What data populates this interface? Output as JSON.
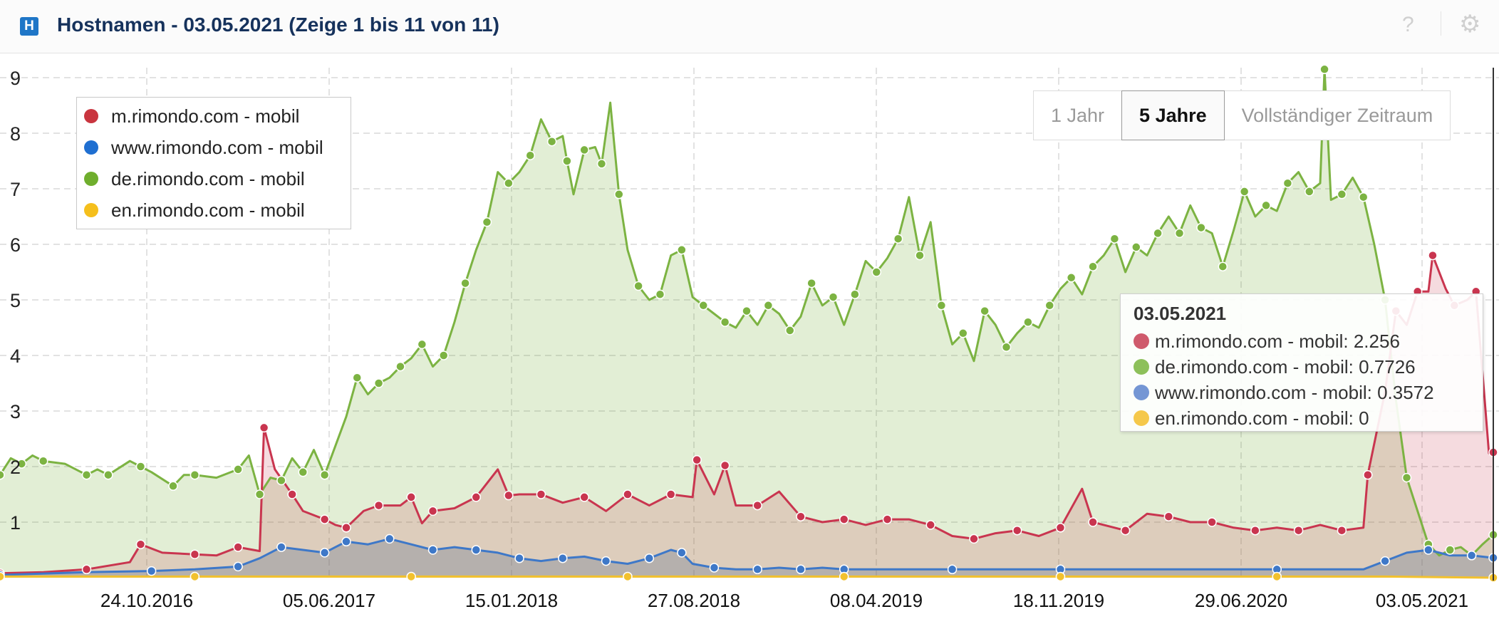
{
  "header": {
    "logo_letter": "H",
    "title": "Hostnamen - 03.05.2021 (Zeige 1 bis 11 von 11)",
    "help_icon": "?",
    "settings_icon": "gear-icon"
  },
  "range_selector": {
    "buttons": [
      "1 Jahr",
      "5 Jahre",
      "Vollständiger Zeitraum"
    ],
    "active": "5 Jahre"
  },
  "tooltip": {
    "date": "03.05.2021",
    "rows": [
      {
        "label": "m.rimondo.com - mobil: 2.256",
        "color": "#c9354f"
      },
      {
        "label": "de.rimondo.com - mobil: 0.7726",
        "color": "#7cb342"
      },
      {
        "label": "www.rimondo.com - mobil: 0.3572",
        "color": "#3e78c8"
      },
      {
        "label": "en.rimondo.com - mobil: 0",
        "color": "#f2c12e"
      }
    ]
  },
  "chart_data": {
    "type": "area",
    "x_tick_labels": [
      "24.10.2016",
      "05.06.2017",
      "15.01.2018",
      "27.08.2018",
      "08.04.2019",
      "18.11.2019",
      "29.06.2020",
      "03.05.2021"
    ],
    "ylim": [
      0,
      9
    ],
    "y_ticks": [
      1,
      2,
      3,
      4,
      5,
      6,
      7,
      8,
      9
    ],
    "grid": true,
    "legend_position": "top-left",
    "series": [
      {
        "name": "m.rimondo.com - mobil",
        "color": "#c9354f",
        "points": [
          [
            2016.1,
            0.08
          ],
          [
            2016.3,
            0.1
          ],
          [
            2016.5,
            0.15
          ],
          [
            2016.7,
            0.28
          ],
          [
            2016.75,
            0.6
          ],
          [
            2016.85,
            0.45
          ],
          [
            2017.0,
            0.42
          ],
          [
            2017.1,
            0.4
          ],
          [
            2017.2,
            0.55
          ],
          [
            2017.3,
            0.48
          ],
          [
            2017.32,
            2.7
          ],
          [
            2017.37,
            1.95
          ],
          [
            2017.45,
            1.5
          ],
          [
            2017.5,
            1.2
          ],
          [
            2017.6,
            1.05
          ],
          [
            2017.65,
            0.95
          ],
          [
            2017.7,
            0.9
          ],
          [
            2017.78,
            1.2
          ],
          [
            2017.85,
            1.3
          ],
          [
            2017.95,
            1.3
          ],
          [
            2018.0,
            1.45
          ],
          [
            2018.05,
            0.98
          ],
          [
            2018.1,
            1.2
          ],
          [
            2018.2,
            1.25
          ],
          [
            2018.3,
            1.45
          ],
          [
            2018.4,
            1.95
          ],
          [
            2018.45,
            1.48
          ],
          [
            2018.5,
            1.5
          ],
          [
            2018.6,
            1.5
          ],
          [
            2018.7,
            1.35
          ],
          [
            2018.8,
            1.45
          ],
          [
            2018.9,
            1.2
          ],
          [
            2019.0,
            1.5
          ],
          [
            2019.1,
            1.3
          ],
          [
            2019.2,
            1.5
          ],
          [
            2019.3,
            1.45
          ],
          [
            2019.32,
            2.12
          ],
          [
            2019.4,
            1.5
          ],
          [
            2019.45,
            2.02
          ],
          [
            2019.5,
            1.3
          ],
          [
            2019.6,
            1.3
          ],
          [
            2019.7,
            1.55
          ],
          [
            2019.8,
            1.1
          ],
          [
            2019.9,
            1.0
          ],
          [
            2020.0,
            1.05
          ],
          [
            2020.1,
            0.95
          ],
          [
            2020.2,
            1.05
          ],
          [
            2020.3,
            1.05
          ],
          [
            2020.4,
            0.95
          ],
          [
            2020.5,
            0.75
          ],
          [
            2020.6,
            0.7
          ],
          [
            2020.7,
            0.8
          ],
          [
            2020.8,
            0.85
          ],
          [
            2020.9,
            0.75
          ],
          [
            2021.0,
            0.9
          ],
          [
            2021.1,
            1.6
          ],
          [
            2021.15,
            1.0
          ],
          [
            2021.2,
            0.95
          ],
          [
            2021.3,
            0.85
          ],
          [
            2021.4,
            1.15
          ],
          [
            2021.5,
            1.1
          ],
          [
            2021.6,
            1.0
          ],
          [
            2021.7,
            1.0
          ],
          [
            2021.8,
            0.9
          ],
          [
            2021.9,
            0.85
          ],
          [
            2022.0,
            0.9
          ],
          [
            2022.1,
            0.85
          ],
          [
            2022.2,
            0.95
          ],
          [
            2022.3,
            0.85
          ],
          [
            2022.4,
            0.9
          ],
          [
            2022.42,
            1.85
          ],
          [
            2022.5,
            3.35
          ],
          [
            2022.55,
            4.8
          ],
          [
            2022.6,
            4.55
          ],
          [
            2022.65,
            5.15
          ],
          [
            2022.7,
            5.15
          ],
          [
            2022.72,
            5.8
          ],
          [
            2022.78,
            5.2
          ],
          [
            2022.82,
            4.9
          ],
          [
            2022.88,
            5.0
          ],
          [
            2022.92,
            5.15
          ],
          [
            2022.98,
            2.24
          ],
          [
            2023.0,
            2.256
          ]
        ]
      },
      {
        "name": "www.rimondo.com - mobil",
        "color": "#3e78c8",
        "points": [
          [
            2016.1,
            0.05
          ],
          [
            2016.5,
            0.1
          ],
          [
            2016.8,
            0.12
          ],
          [
            2017.0,
            0.15
          ],
          [
            2017.2,
            0.2
          ],
          [
            2017.3,
            0.35
          ],
          [
            2017.4,
            0.55
          ],
          [
            2017.5,
            0.5
          ],
          [
            2017.6,
            0.45
          ],
          [
            2017.65,
            0.55
          ],
          [
            2017.7,
            0.65
          ],
          [
            2017.8,
            0.6
          ],
          [
            2017.9,
            0.7
          ],
          [
            2018.0,
            0.6
          ],
          [
            2018.1,
            0.5
          ],
          [
            2018.2,
            0.55
          ],
          [
            2018.3,
            0.5
          ],
          [
            2018.4,
            0.45
          ],
          [
            2018.5,
            0.35
          ],
          [
            2018.6,
            0.3
          ],
          [
            2018.7,
            0.35
          ],
          [
            2018.8,
            0.38
          ],
          [
            2018.9,
            0.3
          ],
          [
            2019.0,
            0.25
          ],
          [
            2019.1,
            0.35
          ],
          [
            2019.2,
            0.5
          ],
          [
            2019.25,
            0.45
          ],
          [
            2019.3,
            0.25
          ],
          [
            2019.4,
            0.18
          ],
          [
            2019.5,
            0.15
          ],
          [
            2019.6,
            0.15
          ],
          [
            2019.7,
            0.18
          ],
          [
            2019.8,
            0.15
          ],
          [
            2019.9,
            0.18
          ],
          [
            2020.0,
            0.15
          ],
          [
            2020.2,
            0.15
          ],
          [
            2020.5,
            0.15
          ],
          [
            2020.8,
            0.15
          ],
          [
            2021.0,
            0.15
          ],
          [
            2021.5,
            0.15
          ],
          [
            2022.0,
            0.15
          ],
          [
            2022.4,
            0.15
          ],
          [
            2022.5,
            0.3
          ],
          [
            2022.6,
            0.45
          ],
          [
            2022.7,
            0.5
          ],
          [
            2022.8,
            0.4
          ],
          [
            2022.9,
            0.4
          ],
          [
            2023.0,
            0.3572
          ]
        ]
      },
      {
        "name": "de.rimondo.com - mobil",
        "color": "#7cb342",
        "points": [
          [
            2016.1,
            1.85
          ],
          [
            2016.15,
            2.15
          ],
          [
            2016.2,
            2.05
          ],
          [
            2016.25,
            2.2
          ],
          [
            2016.3,
            2.1
          ],
          [
            2016.4,
            2.05
          ],
          [
            2016.5,
            1.85
          ],
          [
            2016.55,
            1.95
          ],
          [
            2016.6,
            1.85
          ],
          [
            2016.7,
            2.1
          ],
          [
            2016.75,
            2.0
          ],
          [
            2016.8,
            1.9
          ],
          [
            2016.9,
            1.65
          ],
          [
            2016.95,
            1.85
          ],
          [
            2017.0,
            1.85
          ],
          [
            2017.1,
            1.8
          ],
          [
            2017.2,
            1.95
          ],
          [
            2017.25,
            2.2
          ],
          [
            2017.3,
            1.5
          ],
          [
            2017.35,
            1.8
          ],
          [
            2017.4,
            1.75
          ],
          [
            2017.45,
            2.15
          ],
          [
            2017.5,
            1.9
          ],
          [
            2017.55,
            2.3
          ],
          [
            2017.6,
            1.85
          ],
          [
            2017.7,
            2.9
          ],
          [
            2017.75,
            3.6
          ],
          [
            2017.8,
            3.3
          ],
          [
            2017.85,
            3.5
          ],
          [
            2017.9,
            3.6
          ],
          [
            2017.95,
            3.8
          ],
          [
            2018.0,
            3.95
          ],
          [
            2018.05,
            4.2
          ],
          [
            2018.1,
            3.8
          ],
          [
            2018.15,
            4.0
          ],
          [
            2018.2,
            4.6
          ],
          [
            2018.25,
            5.3
          ],
          [
            2018.3,
            5.9
          ],
          [
            2018.35,
            6.4
          ],
          [
            2018.4,
            7.3
          ],
          [
            2018.45,
            7.1
          ],
          [
            2018.5,
            7.3
          ],
          [
            2018.55,
            7.6
          ],
          [
            2018.6,
            8.25
          ],
          [
            2018.65,
            7.85
          ],
          [
            2018.7,
            7.95
          ],
          [
            2018.72,
            7.5
          ],
          [
            2018.75,
            6.9
          ],
          [
            2018.8,
            7.7
          ],
          [
            2018.85,
            7.75
          ],
          [
            2018.88,
            7.45
          ],
          [
            2018.92,
            8.55
          ],
          [
            2018.96,
            6.9
          ],
          [
            2019.0,
            5.9
          ],
          [
            2019.05,
            5.25
          ],
          [
            2019.1,
            5.0
          ],
          [
            2019.15,
            5.1
          ],
          [
            2019.2,
            5.8
          ],
          [
            2019.25,
            5.9
          ],
          [
            2019.3,
            5.05
          ],
          [
            2019.35,
            4.9
          ],
          [
            2019.4,
            4.75
          ],
          [
            2019.45,
            4.6
          ],
          [
            2019.5,
            4.5
          ],
          [
            2019.55,
            4.8
          ],
          [
            2019.6,
            4.55
          ],
          [
            2019.65,
            4.9
          ],
          [
            2019.7,
            4.75
          ],
          [
            2019.75,
            4.45
          ],
          [
            2019.8,
            4.7
          ],
          [
            2019.85,
            5.3
          ],
          [
            2019.9,
            4.9
          ],
          [
            2019.95,
            5.05
          ],
          [
            2020.0,
            4.55
          ],
          [
            2020.05,
            5.1
          ],
          [
            2020.1,
            5.7
          ],
          [
            2020.15,
            5.5
          ],
          [
            2020.2,
            5.75
          ],
          [
            2020.25,
            6.1
          ],
          [
            2020.3,
            6.85
          ],
          [
            2020.35,
            5.8
          ],
          [
            2020.4,
            6.4
          ],
          [
            2020.45,
            4.9
          ],
          [
            2020.5,
            4.2
          ],
          [
            2020.55,
            4.4
          ],
          [
            2020.6,
            3.9
          ],
          [
            2020.65,
            4.8
          ],
          [
            2020.7,
            4.55
          ],
          [
            2020.75,
            4.15
          ],
          [
            2020.8,
            4.4
          ],
          [
            2020.85,
            4.6
          ],
          [
            2020.9,
            4.5
          ],
          [
            2020.95,
            4.9
          ],
          [
            2021.0,
            5.2
          ],
          [
            2021.05,
            5.4
          ],
          [
            2021.1,
            5.1
          ],
          [
            2021.15,
            5.6
          ],
          [
            2021.2,
            5.8
          ],
          [
            2021.25,
            6.1
          ],
          [
            2021.3,
            5.5
          ],
          [
            2021.35,
            5.95
          ],
          [
            2021.4,
            5.8
          ],
          [
            2021.45,
            6.2
          ],
          [
            2021.5,
            6.5
          ],
          [
            2021.55,
            6.2
          ],
          [
            2021.6,
            6.7
          ],
          [
            2021.65,
            6.3
          ],
          [
            2021.7,
            6.2
          ],
          [
            2021.75,
            5.6
          ],
          [
            2021.8,
            6.25
          ],
          [
            2021.85,
            6.95
          ],
          [
            2021.9,
            6.5
          ],
          [
            2021.95,
            6.7
          ],
          [
            2022.0,
            6.6
          ],
          [
            2022.05,
            7.1
          ],
          [
            2022.1,
            7.3
          ],
          [
            2022.15,
            6.95
          ],
          [
            2022.2,
            7.1
          ],
          [
            2022.22,
            9.15
          ],
          [
            2022.25,
            6.8
          ],
          [
            2022.3,
            6.9
          ],
          [
            2022.35,
            7.2
          ],
          [
            2022.4,
            6.85
          ],
          [
            2022.45,
            6.0
          ],
          [
            2022.5,
            5.0
          ],
          [
            2022.55,
            3.2
          ],
          [
            2022.6,
            1.8
          ],
          [
            2022.65,
            1.2
          ],
          [
            2022.7,
            0.6
          ],
          [
            2022.75,
            0.4
          ],
          [
            2022.8,
            0.5
          ],
          [
            2022.85,
            0.55
          ],
          [
            2022.9,
            0.4
          ],
          [
            2022.95,
            0.6
          ],
          [
            2023.0,
            0.7726
          ]
        ]
      },
      {
        "name": "en.rimondo.com - mobil",
        "color": "#f2c12e",
        "points": [
          [
            2016.1,
            0.02
          ],
          [
            2016.5,
            0.02
          ],
          [
            2017.0,
            0.02
          ],
          [
            2017.5,
            0.02
          ],
          [
            2018.0,
            0.02
          ],
          [
            2018.5,
            0.02
          ],
          [
            2019.0,
            0.02
          ],
          [
            2019.5,
            0.02
          ],
          [
            2020.0,
            0.02
          ],
          [
            2020.5,
            0.02
          ],
          [
            2021.0,
            0.02
          ],
          [
            2021.5,
            0.02
          ],
          [
            2022.0,
            0.02
          ],
          [
            2022.5,
            0.02
          ],
          [
            2023.0,
            0
          ]
        ]
      }
    ]
  }
}
